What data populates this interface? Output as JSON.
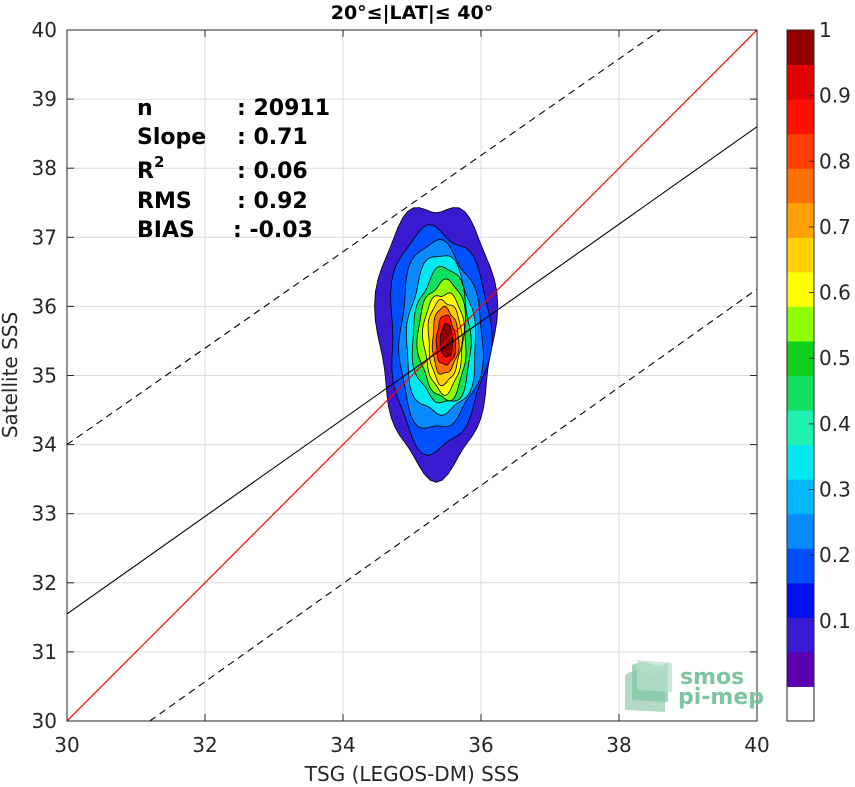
{
  "chart_data": {
    "type": "contour",
    "title": "20°≤|LAT|≤ 40°",
    "xlabel": "TSG (LEGOS-DM) SSS",
    "ylabel": "Satellite SSS",
    "xlim": [
      30,
      40
    ],
    "ylim": [
      30,
      40
    ],
    "xticks": [
      30,
      32,
      34,
      36,
      38,
      40
    ],
    "yticks": [
      30,
      31,
      32,
      33,
      34,
      35,
      36,
      37,
      38,
      39,
      40
    ],
    "grid": true,
    "stats": [
      {
        "label": "n",
        "value": ": 20911"
      },
      {
        "label": "Slope",
        "value": ": 0.71"
      },
      {
        "label": "R",
        "sup": "2",
        "value": ": 0.06"
      },
      {
        "label": "RMS",
        "value": ": 0.92"
      },
      {
        "label": "BIAS",
        "value": ": -0.03"
      }
    ],
    "lines": {
      "identity": {
        "color": "#ff0000",
        "slope": 1,
        "intercept": 0
      },
      "fit": {
        "color": "#000000",
        "slope": 0.71,
        "points": [
          [
            30,
            31.55
          ],
          [
            40,
            38.6
          ]
        ]
      },
      "upper_bound": {
        "style": "dashed",
        "points": [
          [
            30,
            34.0
          ],
          [
            38.6,
            40
          ]
        ]
      },
      "lower_bound": {
        "style": "dashed",
        "points": [
          [
            31.2,
            30
          ],
          [
            40,
            36.25
          ]
        ]
      }
    },
    "density_peak": {
      "x": 35.5,
      "y": 35.5
    },
    "colorbar": {
      "ticks": [
        0.1,
        0.2,
        0.3,
        0.4,
        0.5,
        0.6,
        0.7,
        0.8,
        0.9,
        1
      ],
      "tick_labels": [
        "0.1",
        "0.2",
        "0.3",
        "0.4",
        "0.5",
        "0.6",
        "0.7",
        "0.8",
        "0.9",
        "1"
      ],
      "colors": [
        "#ffffff",
        "#5a00b0",
        "#3a1ad0",
        "#0010f0",
        "#0050ff",
        "#0a8aff",
        "#00b8ff",
        "#00e8f0",
        "#20f0b0",
        "#10e060",
        "#10d020",
        "#90ff00",
        "#ffff00",
        "#ffd000",
        "#ffa000",
        "#ff7000",
        "#ff4000",
        "#ff1000",
        "#e00000",
        "#900000"
      ]
    },
    "logo": {
      "line1": "smos",
      "line2": "pi-mep"
    }
  }
}
